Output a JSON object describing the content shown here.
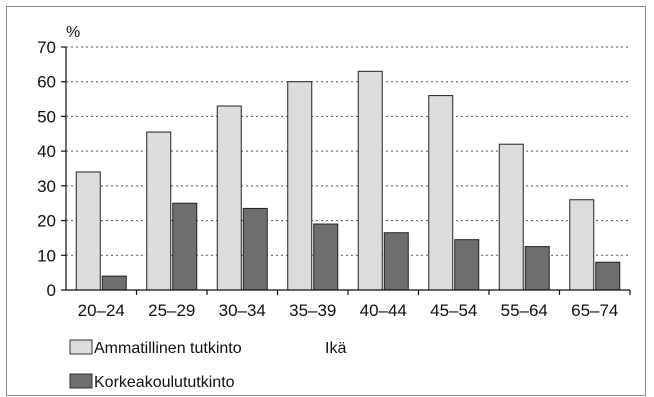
{
  "chart_data": {
    "type": "bar",
    "unit_label": "%",
    "xlabel": "Ikä",
    "ylim": [
      0,
      70
    ],
    "yticks": [
      0,
      10,
      20,
      30,
      40,
      50,
      60,
      70
    ],
    "grid": true,
    "categories": [
      "20–24",
      "25–29",
      "30–34",
      "35–39",
      "40–44",
      "45–54",
      "55–64",
      "65–74"
    ],
    "series": [
      {
        "name": "Ammatillinen tutkinto",
        "color": "#dcdcdc",
        "values": [
          34,
          45.5,
          53,
          60,
          63,
          56,
          42,
          26
        ]
      },
      {
        "name": "Korkeakoulututkinto",
        "color": "#6e6e6e",
        "values": [
          4,
          25,
          23.5,
          19,
          16.5,
          14.5,
          12.5,
          8
        ]
      }
    ],
    "legend": "bottom-left"
  }
}
